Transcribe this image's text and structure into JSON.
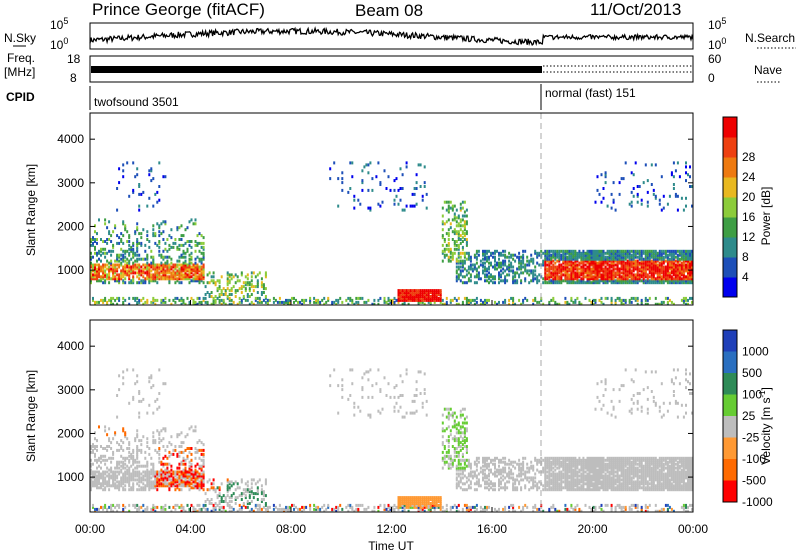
{
  "header": {
    "station": "Prince George (fitACF)",
    "beam": "Beam 08",
    "date": "11/Oct/2013"
  },
  "panels": {
    "nsky": {
      "label": "N.Sky",
      "ticks": [
        "10^5",
        "10^0"
      ],
      "right_ticks": [
        "10^5",
        "10^0"
      ],
      "right_label": "N.Search"
    },
    "freq": {
      "label_top": "Freq.",
      "label_bottom": "[MHz]",
      "ticks": [
        "18",
        "8"
      ],
      "right_ticks": [
        "60",
        "0"
      ],
      "right_label": "Nave"
    },
    "cpid": {
      "label": "CPID",
      "segments": [
        {
          "name": "twofsound 3501",
          "start_hour": 0
        },
        {
          "name": "normal (fast) 151",
          "start_hour": 18
        }
      ]
    }
  },
  "chart_data": [
    {
      "type": "heatmap",
      "title": "",
      "ylabel": "Slant Range [km]",
      "xlabel": "",
      "xlim": [
        0,
        24
      ],
      "ylim": [
        200,
        4600
      ],
      "y_ticks": [
        "1000",
        "2000",
        "3000",
        "4000"
      ],
      "colorbar": {
        "label": "Power [dB]",
        "ticks": [
          "4",
          "8",
          "12",
          "16",
          "20",
          "24",
          "28"
        ],
        "colors": [
          "#0000ee",
          "#1d4fb8",
          "#2e8b8b",
          "#3e9e44",
          "#8ccc3a",
          "#e8b820",
          "#ee7a10",
          "#ee4010",
          "#ee0000"
        ]
      },
      "features": [
        {
          "name": "near-range band",
          "hours": [
            0,
            24
          ],
          "range_km": [
            200,
            400
          ],
          "dominant_dB": 8
        },
        {
          "name": "early E/F band",
          "hours": [
            0,
            4.5
          ],
          "range_km": [
            800,
            1300
          ],
          "peak_dB": 26
        },
        {
          "name": "evening strong band",
          "hours": [
            18,
            24
          ],
          "range_km": [
            700,
            1400
          ],
          "peak_dB": 28
        },
        {
          "name": "midday patch",
          "hours": [
            12,
            14
          ],
          "range_km": [
            300,
            700
          ],
          "peak_dB": 28
        }
      ]
    },
    {
      "type": "heatmap",
      "title": "",
      "ylabel": "Slant Range [km]",
      "xlabel": "Time UT",
      "xlim": [
        0,
        24
      ],
      "ylim": [
        200,
        4600
      ],
      "y_ticks": [
        "1000",
        "2000",
        "3000",
        "4000"
      ],
      "x_ticks": [
        "00:00",
        "04:00",
        "08:00",
        "12:00",
        "16:00",
        "20:00",
        "00:00"
      ],
      "colorbar": {
        "label": "Velocity [m s^-1]",
        "ticks": [
          "1000",
          "500",
          "100",
          "25",
          "-25",
          "-100",
          "-500",
          "-1000"
        ],
        "colors": [
          "#1f3fb8",
          "#2a6fc0",
          "#2e8b57",
          "#66cc33",
          "#bdbdbd",
          "#ff9933",
          "#ff6a00",
          "#ff0000"
        ]
      },
      "features": [
        {
          "name": "ground scatter",
          "hours": [
            0,
            24
          ],
          "range_km": [
            700,
            1400
          ],
          "dominant_velocity": 0
        },
        {
          "name": "receding flow",
          "hours": [
            2.5,
            5.5
          ],
          "range_km": [
            700,
            1700
          ],
          "dominant_velocity": -500
        },
        {
          "name": "midday patch",
          "hours": [
            12,
            14
          ],
          "range_km": [
            300,
            600
          ],
          "dominant_velocity": -300
        }
      ]
    }
  ]
}
